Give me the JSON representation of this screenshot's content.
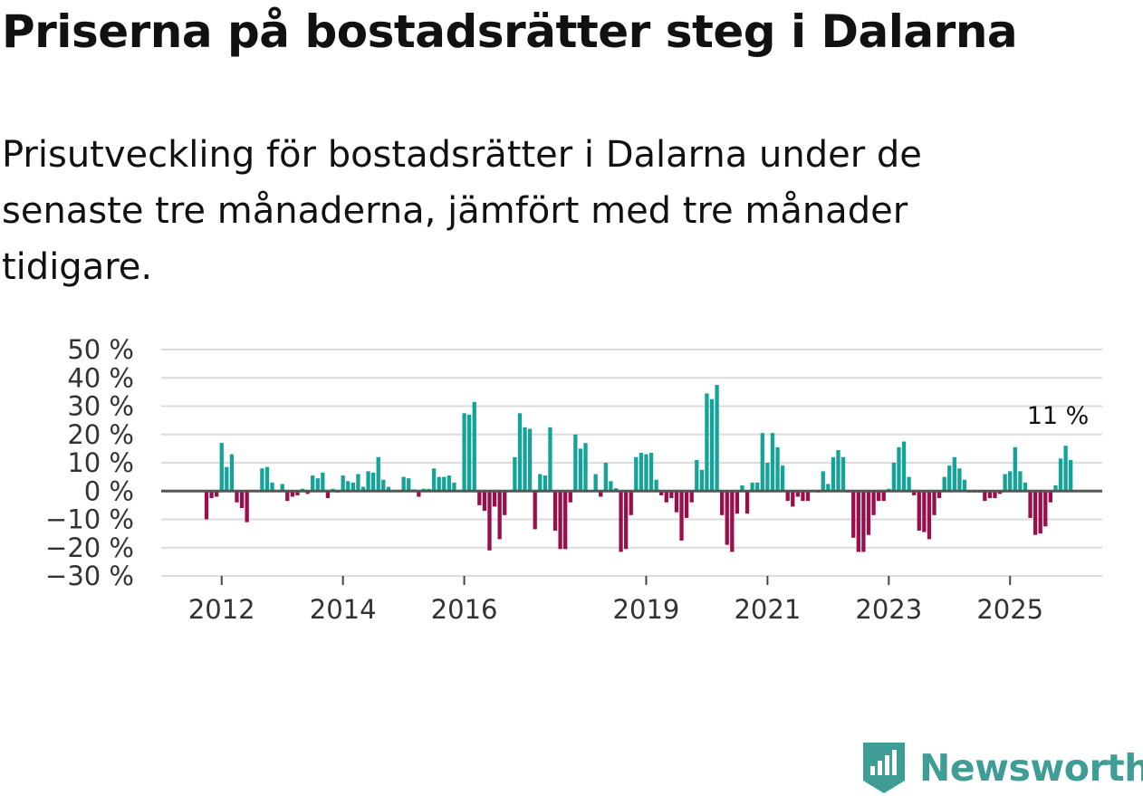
{
  "title": "Priserna på bostadsrätter steg i Dalarna",
  "subtitle": "Prisutveckling för bostadsrätter i Dalarna under de senaste tre månaderna, jämfört med tre månader tidigare.",
  "brand": {
    "name": "Newsworthy",
    "icon": "newsworthy-logo-icon"
  },
  "colors": {
    "positive": "#13a399",
    "negative": "#990f4b",
    "grid": "#dcdcdc",
    "zero": "#555555"
  },
  "chart_data": {
    "type": "bar",
    "title": "Priserna på bostadsrätter steg i Dalarna",
    "xlabel": "",
    "ylabel": "",
    "ylim": [
      -30,
      50
    ],
    "y_ticks": [
      50,
      40,
      30,
      20,
      10,
      0,
      -10,
      -20,
      -30
    ],
    "y_tick_labels": [
      "50 %",
      "40 %",
      "30 %",
      "20 %",
      "10 %",
      "0 %",
      "−10 %",
      "−20 %",
      "−30 %"
    ],
    "x_ticks": [
      {
        "label": "2012",
        "index": 3
      },
      {
        "label": "2014",
        "index": 27
      },
      {
        "label": "2016",
        "index": 51
      },
      {
        "label": "2019",
        "index": 87
      },
      {
        "label": "2021",
        "index": 111
      },
      {
        "label": "2023",
        "index": 135
      },
      {
        "label": "2025",
        "index": 159
      }
    ],
    "start": "2011-10",
    "frequency": "monthly",
    "annotation": {
      "label": "11 %",
      "index": 171
    },
    "values": [
      -10,
      -2.5,
      -2,
      17,
      8.5,
      13,
      -4,
      -6,
      -11,
      0,
      0,
      8,
      8.5,
      3,
      0,
      2.5,
      -3.5,
      -2,
      -1.5,
      0.8,
      -1,
      5.5,
      4.5,
      6.5,
      -2.5,
      0.8,
      -0.5,
      5.5,
      3.5,
      3,
      6,
      1.5,
      7,
      6.5,
      12,
      4,
      1.5,
      0,
      0,
      5,
      4.5,
      0.6,
      -2,
      0.8,
      0.8,
      8,
      5,
      5,
      5.5,
      3,
      0,
      27.5,
      27,
      31.5,
      -5,
      -7,
      -21,
      -5.5,
      -17,
      -8.5,
      0,
      12,
      27.5,
      22.5,
      22,
      -13.5,
      6,
      5.5,
      22.5,
      -14,
      -20.5,
      -20.5,
      -4,
      20,
      15,
      17,
      0,
      6,
      -2,
      10,
      3.5,
      1,
      -21.5,
      -20.5,
      -8.5,
      12,
      13.5,
      13,
      13.5,
      4,
      -1.5,
      -4,
      -2.5,
      -7.5,
      -17.5,
      -9.5,
      -4,
      11,
      7.5,
      34.5,
      32.5,
      37.5,
      -8.5,
      -19,
      -21.5,
      -8,
      2,
      -8,
      3,
      3,
      20.5,
      10,
      20.5,
      15.5,
      9,
      -3.5,
      -5.5,
      -2,
      -3.5,
      -3.5,
      0,
      -0.5,
      7,
      2.5,
      12,
      14.5,
      12,
      -0.5,
      -16.5,
      -21.5,
      -21.5,
      -15.5,
      -8.5,
      -3.5,
      -3.5,
      0.8,
      10,
      15.5,
      17.5,
      5,
      -1.5,
      -14,
      -14.5,
      -17,
      -8.5,
      -2.5,
      5,
      9,
      12,
      8,
      4,
      -0.5,
      -0.5,
      -0.5,
      -3.5,
      -2.5,
      -2.5,
      -1,
      6,
      7,
      15.5,
      7,
      3,
      -9.5,
      -15.5,
      -15,
      -12.5,
      -4,
      2,
      11.5,
      16,
      11
    ]
  }
}
